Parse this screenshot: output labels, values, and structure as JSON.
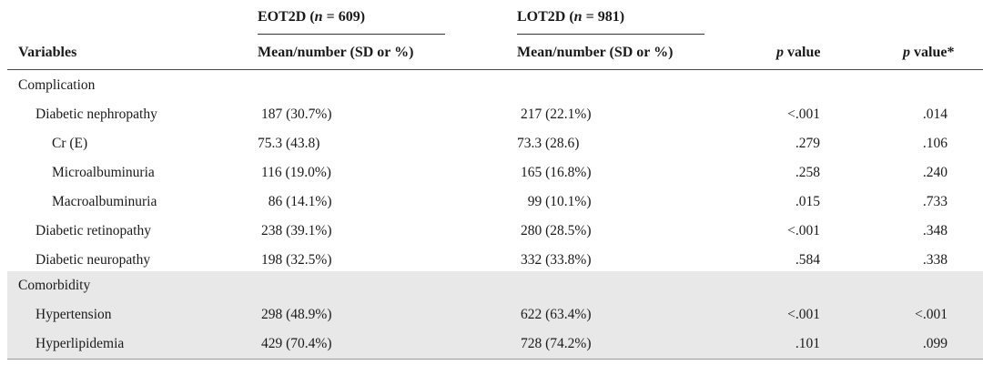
{
  "header": {
    "group_eot": {
      "name": "EOT2D (",
      "n_symbol": "n",
      "n_value": " = 609)"
    },
    "group_lot": {
      "name": "LOT2D (",
      "n_symbol": "n",
      "n_value": " = 981)"
    },
    "col_variables": "Variables",
    "col_eot": "Mean/number (SD or %)",
    "col_lot": "Mean/number (SD or %)",
    "col_p": "p",
    "col_p_suffix": " value",
    "col_p_star": "p",
    "col_p_star_suffix": " value*"
  },
  "rows": [
    {
      "variable": "Complication",
      "eot": "",
      "lot": "",
      "p": "",
      "p_adj": ""
    },
    {
      "variable": "Diabetic nephropathy",
      "eot": "187 (30.7%)",
      "lot": "217 (22.1%)",
      "p": "<.001",
      "p_adj": ".014"
    },
    {
      "variable": "Cr (E)",
      "eot": "75.3 (43.8)",
      "lot": "73.3 (28.6)",
      "p": ".279",
      "p_adj": ".106"
    },
    {
      "variable": "Microalbuminuria",
      "eot": "116 (19.0%)",
      "lot": "165 (16.8%)",
      "p": ".258",
      "p_adj": ".240"
    },
    {
      "variable": "Macroalbuminuria",
      "eot": "  86 (14.1%)",
      "lot": "  99 (10.1%)",
      "p": ".015",
      "p_adj": ".733"
    },
    {
      "variable": "Diabetic retinopathy",
      "eot": "238 (39.1%)",
      "lot": "280 (28.5%)",
      "p": "<.001",
      "p_adj": ".348"
    },
    {
      "variable": "Diabetic neuropathy",
      "eot": "198 (32.5%)",
      "lot": "332 (33.8%)",
      "p": ".584",
      "p_adj": ".338"
    },
    {
      "variable": "Comorbidity",
      "eot": "",
      "lot": "",
      "p": "",
      "p_adj": ""
    },
    {
      "variable": "Hypertension",
      "eot": "298 (48.9%)",
      "lot": "622 (63.4%)",
      "p": "<.001",
      "p_adj": "<.001"
    },
    {
      "variable": "Hyperlipidemia",
      "eot": "429 (70.4%)",
      "lot": "728 (74.2%)",
      "p": ".101",
      "p_adj": ".099"
    }
  ]
}
